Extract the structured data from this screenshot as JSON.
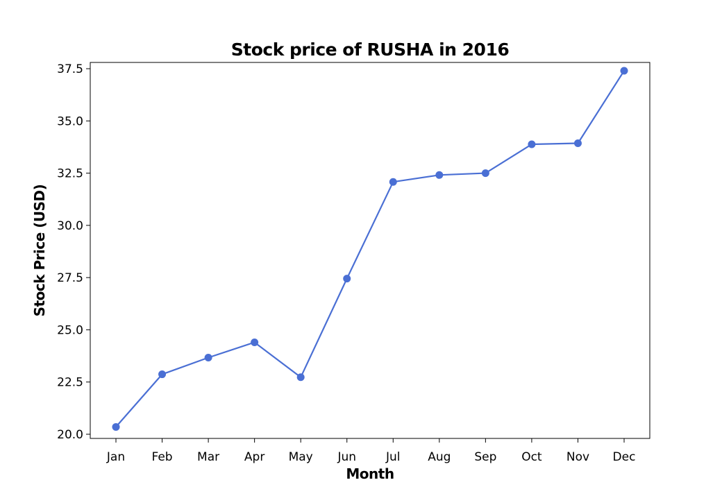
{
  "colors": {
    "line": "#4a6fd4",
    "axes": "#000000",
    "background": "#ffffff"
  },
  "chart_data": {
    "type": "line",
    "title": "Stock price of RUSHA in 2016",
    "xlabel": "Month",
    "ylabel": "Stock Price (USD)",
    "categories": [
      "Jan",
      "Feb",
      "Mar",
      "Apr",
      "May",
      "Jun",
      "Jul",
      "Aug",
      "Sep",
      "Oct",
      "Nov",
      "Dec"
    ],
    "series": [
      {
        "values": [
          20.35,
          22.87,
          23.67,
          24.4,
          22.73,
          27.45,
          32.08,
          32.41,
          32.5,
          33.88,
          33.93,
          37.4
        ]
      }
    ],
    "ylim": [
      19.8,
      37.8
    ],
    "yticks": [
      20.0,
      22.5,
      25.0,
      27.5,
      30.0,
      32.5,
      35.0,
      37.5
    ],
    "ytick_labels": [
      "20.0",
      "22.5",
      "25.0",
      "27.5",
      "30.0",
      "32.5",
      "35.0",
      "37.5"
    ],
    "grid": false,
    "legend": "none",
    "marker": "circle"
  }
}
